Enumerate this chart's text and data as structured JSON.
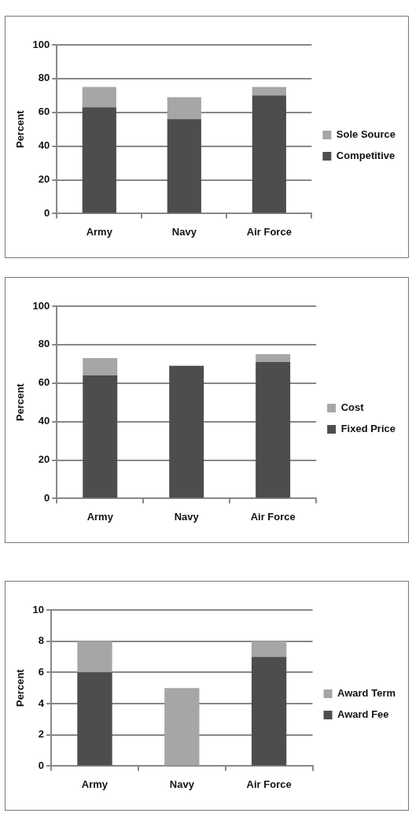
{
  "chart_data": [
    {
      "type": "bar",
      "stacked": true,
      "ylabel": "Percent",
      "categories": [
        "Army",
        "Navy",
        "Air Force"
      ],
      "ylim": [
        0,
        100
      ],
      "yticks": [
        0,
        20,
        40,
        60,
        80,
        100
      ],
      "grid": "y",
      "legend": "right",
      "series": [
        {
          "name": "Competitive",
          "color": "#4d4d4d",
          "values": [
            63,
            56,
            70
          ]
        },
        {
          "name": "Sole Source",
          "color": "#a6a6a6",
          "values": [
            12,
            13,
            5
          ]
        }
      ]
    },
    {
      "type": "bar",
      "stacked": true,
      "ylabel": "Percent",
      "categories": [
        "Army",
        "Navy",
        "Air Force"
      ],
      "ylim": [
        0,
        100
      ],
      "yticks": [
        0,
        20,
        40,
        60,
        80,
        100
      ],
      "grid": "y",
      "legend": "right",
      "series": [
        {
          "name": "Fixed Price",
          "color": "#4d4d4d",
          "values": [
            64,
            69,
            71
          ]
        },
        {
          "name": "Cost",
          "color": "#a6a6a6",
          "values": [
            9,
            0,
            4
          ]
        }
      ]
    },
    {
      "type": "bar",
      "stacked": true,
      "ylabel": "Percent",
      "categories": [
        "Army",
        "Navy",
        "Air Force"
      ],
      "ylim": [
        0,
        10
      ],
      "yticks": [
        0,
        2,
        4,
        6,
        8,
        10
      ],
      "grid": "y",
      "legend": "right",
      "series": [
        {
          "name": "Award Fee",
          "color": "#4d4d4d",
          "values": [
            6,
            0,
            7
          ]
        },
        {
          "name": "Award Term",
          "color": "#a6a6a6",
          "values": [
            2,
            5,
            1
          ]
        }
      ]
    }
  ]
}
